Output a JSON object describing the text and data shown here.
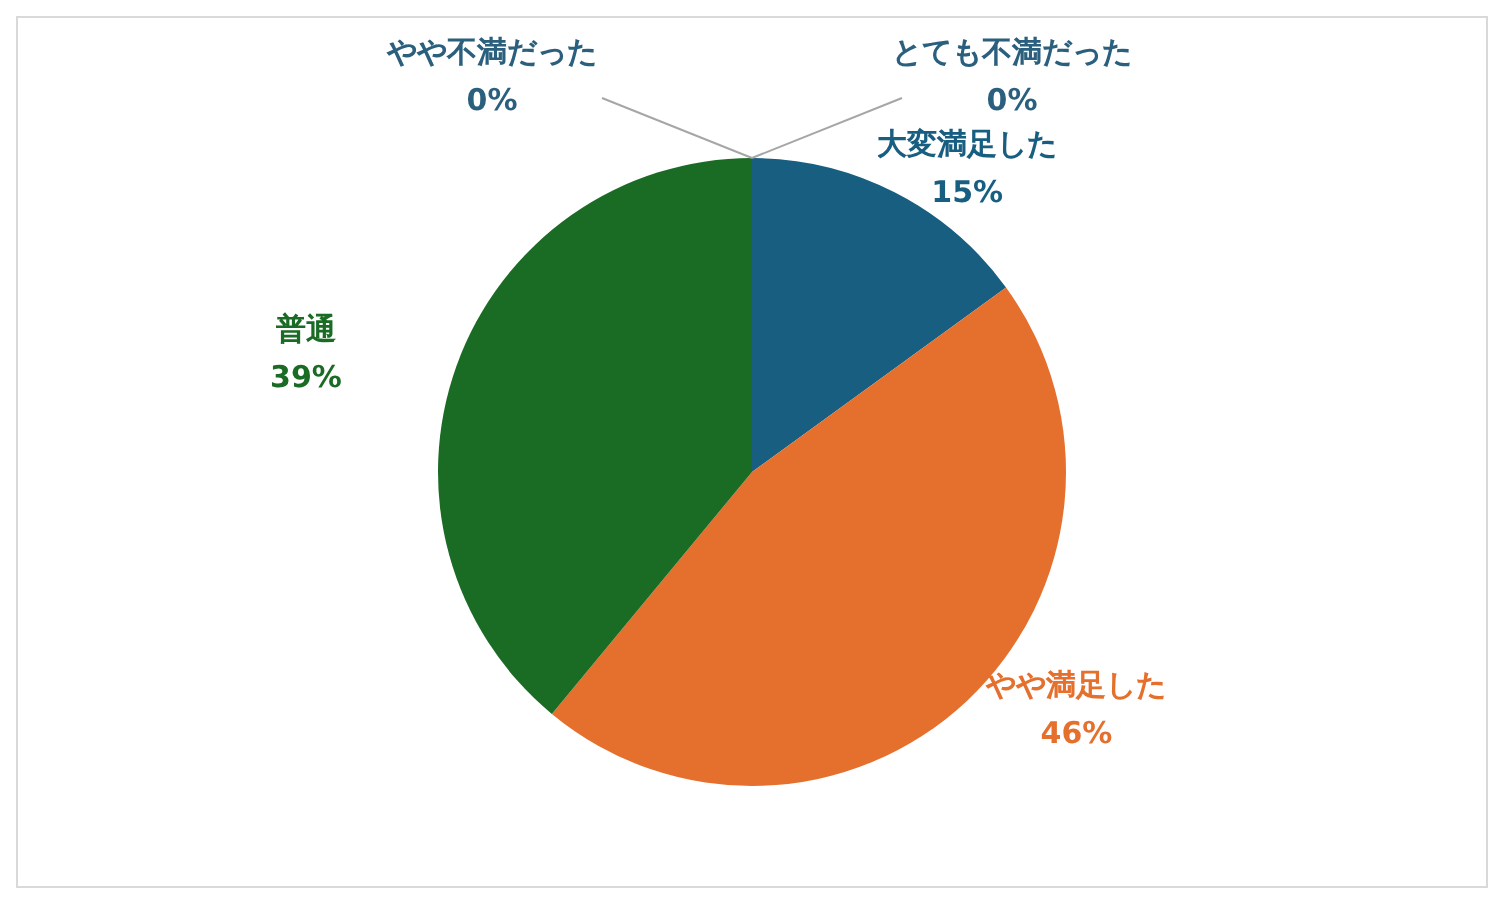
{
  "chart_data": {
    "type": "pie",
    "categories": [
      "大変満足した",
      "やや満足した",
      "普通",
      "やや不満だった",
      "とても不満だった"
    ],
    "values": [
      15,
      46,
      39,
      0,
      0
    ],
    "colors": [
      "#175e80",
      "#e56f2c",
      "#1a6b24",
      "#2b5f7e",
      "#2b5f7e"
    ],
    "value_labels": [
      "15%",
      "46%",
      "39%",
      "0%",
      "0%"
    ],
    "legend": false
  }
}
